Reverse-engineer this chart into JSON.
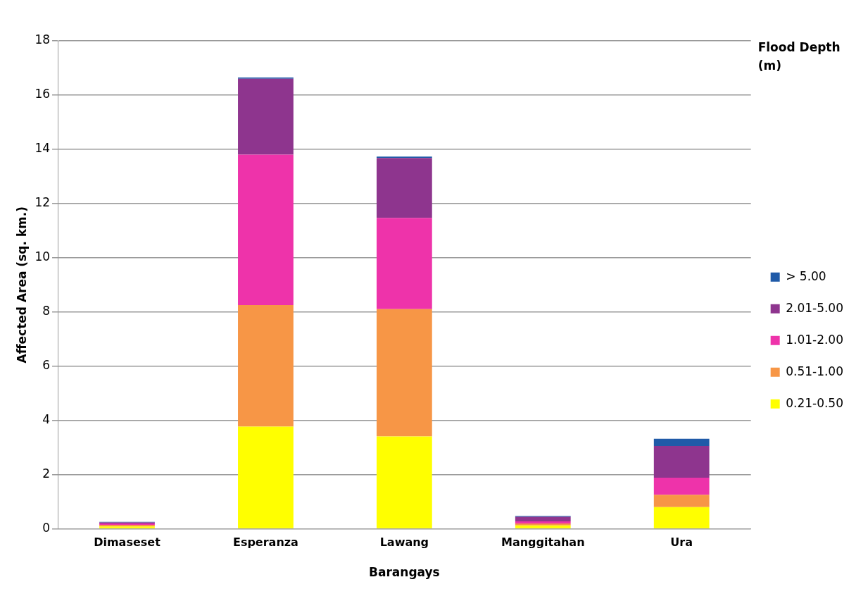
{
  "chart_data": {
    "type": "bar",
    "stacked": true,
    "xlabel": "Barangays",
    "ylabel": "Affected Area (sq. km.)",
    "legend_title": "Flood Depth (m)",
    "legend": "right",
    "categories": [
      "Dimaseset",
      "Esperanza",
      "Lawang",
      "Manggitahan",
      "Ura"
    ],
    "series": [
      {
        "name": "0.21-0.50",
        "color": "#ffff00",
        "values": [
          0.08,
          3.77,
          3.4,
          0.12,
          0.8
        ]
      },
      {
        "name": "0.51-1.00",
        "color": "#f79646",
        "values": [
          0.06,
          4.48,
          4.7,
          0.07,
          0.45
        ]
      },
      {
        "name": "1.01-2.00",
        "color": "#ee33aa",
        "values": [
          0.05,
          5.55,
          3.37,
          0.08,
          0.63
        ]
      },
      {
        "name": "2.01-5.00",
        "color": "#8e358e",
        "values": [
          0.04,
          2.8,
          2.21,
          0.17,
          1.17
        ]
      },
      {
        "name": "> 5.00",
        "color": "#1f5aa8",
        "values": [
          0.02,
          0.05,
          0.05,
          0.03,
          0.27
        ]
      }
    ],
    "ylim": [
      0,
      18
    ],
    "yticks": [
      0,
      2,
      4,
      6,
      8,
      10,
      12,
      14,
      16,
      18
    ],
    "grid": "y"
  }
}
